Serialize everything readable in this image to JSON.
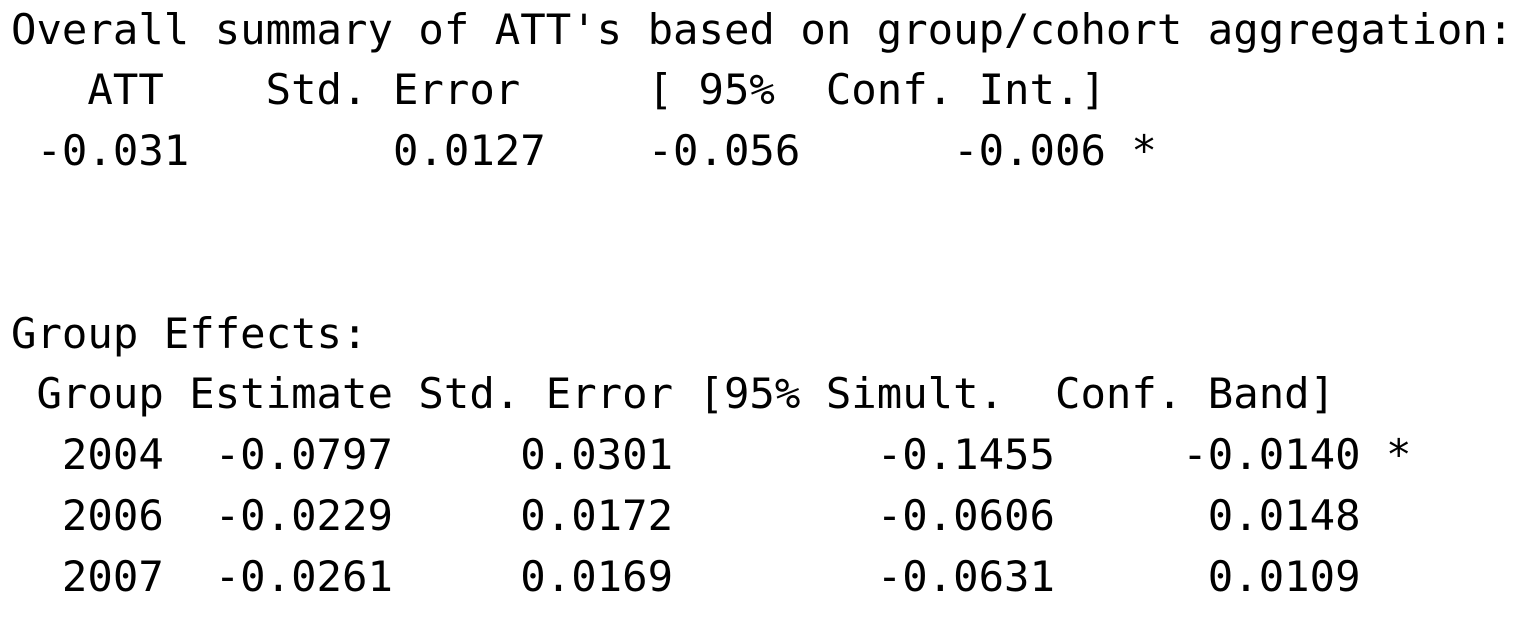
{
  "overall": {
    "title": "Overall summary of ATT's based on group/cohort aggregation:",
    "headers": [
      "ATT",
      "Std. Error",
      "[ 95%",
      "Conf. Int.]"
    ],
    "header_line": "   ATT    Std. Error     [ 95%  Conf. Int.]",
    "row_line": " -0.031        0.0127    -0.056      -0.006 *",
    "values": {
      "att": "-0.031",
      "std_error": "0.0127",
      "ci_lower": "-0.056",
      "ci_upper": "-0.006",
      "signif": "*"
    }
  },
  "group_effects": {
    "title": "Group Effects:",
    "headers": [
      "Group",
      "Estimate",
      "Std. Error",
      "[95% Simult.",
      "Conf. Band]"
    ],
    "header_line": " Group Estimate Std. Error [95% Simult.  Conf. Band]",
    "row_lines": [
      "  2004  -0.0797     0.0301        -0.1455     -0.0140 *",
      "  2006  -0.0229     0.0172        -0.0606      0.0148",
      "  2007  -0.0261     0.0169        -0.0631      0.0109"
    ],
    "rows": [
      {
        "group": "2004",
        "estimate": "-0.0797",
        "std_error": "0.0301",
        "band_lower": "-0.1455",
        "band_upper": "-0.0140",
        "signif": "*"
      },
      {
        "group": "2006",
        "estimate": "-0.0229",
        "std_error": "0.0172",
        "band_lower": "-0.0606",
        "band_upper": "0.0148",
        "signif": ""
      },
      {
        "group": "2007",
        "estimate": "-0.0261",
        "std_error": "0.0169",
        "band_lower": "-0.0631",
        "band_upper": "0.0109",
        "signif": ""
      }
    ]
  }
}
